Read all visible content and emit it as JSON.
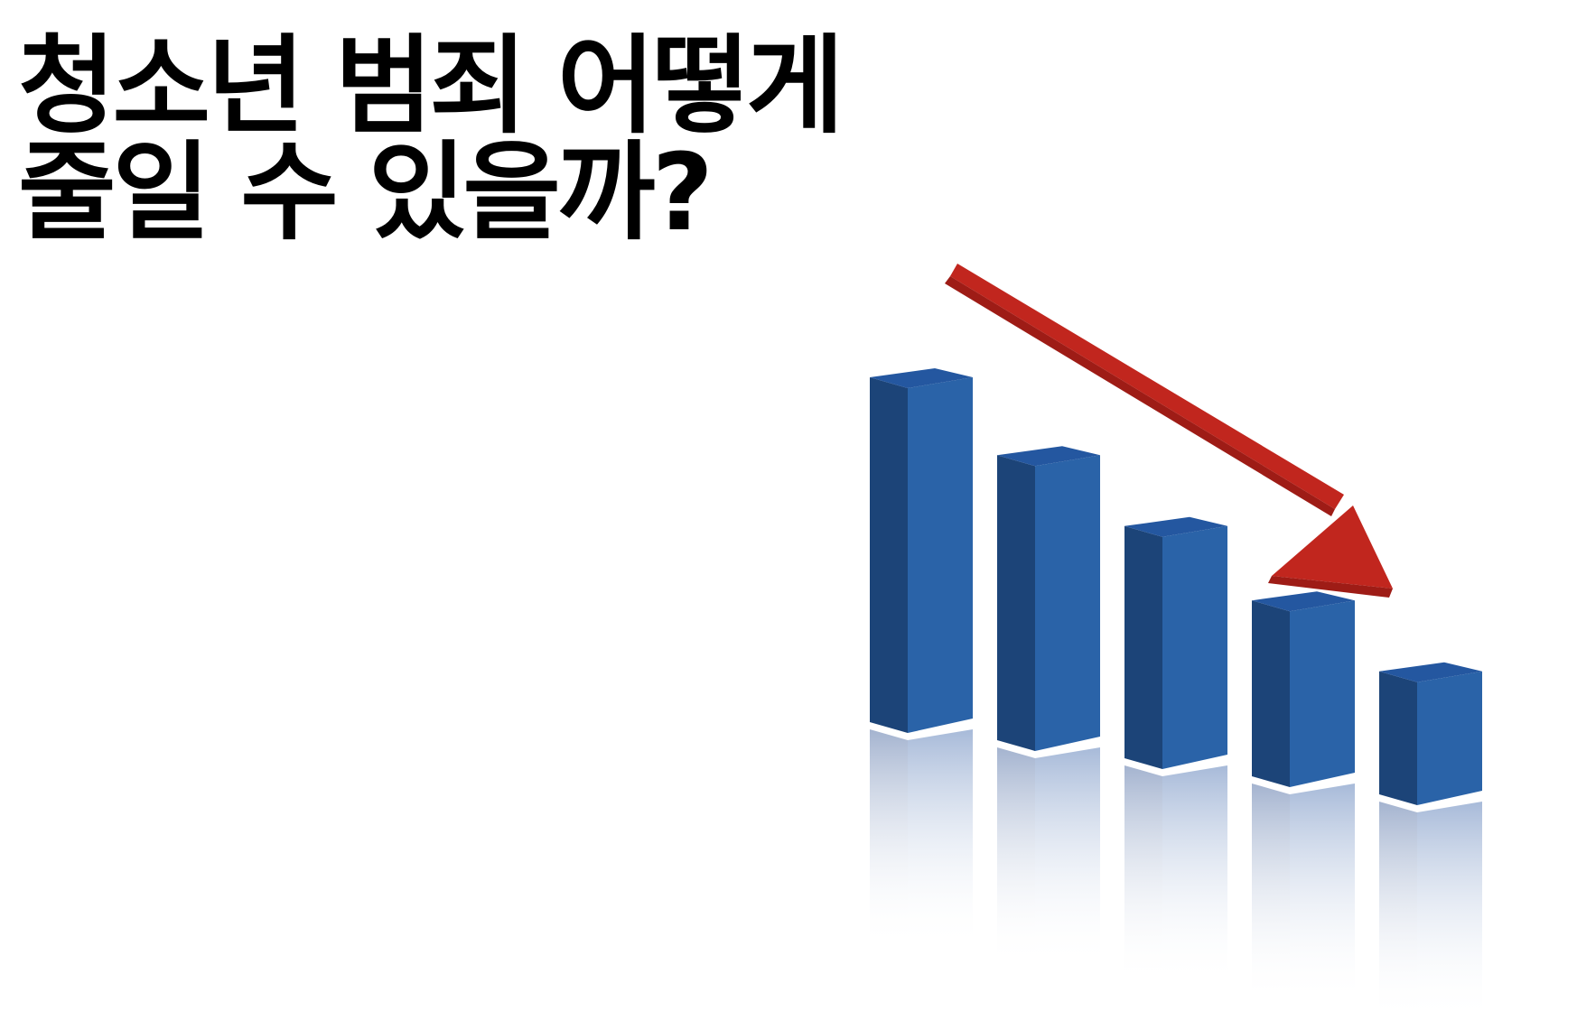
{
  "headline": {
    "line1": "청소년 범죄 어떻게",
    "line2": "줄일 수 있을까?"
  },
  "illustration": {
    "description_icon": "declining-bar-chart-with-down-arrow-icon",
    "bar_levels": [
      1.0,
      0.83,
      0.68,
      0.52,
      0.37
    ],
    "colors": {
      "bar_front": "#2a63a8",
      "bar_side": "#1c4478",
      "bar_top": "#2457a0",
      "arrow": "#c1261e",
      "arrow_shade": "#9e1c16"
    }
  }
}
